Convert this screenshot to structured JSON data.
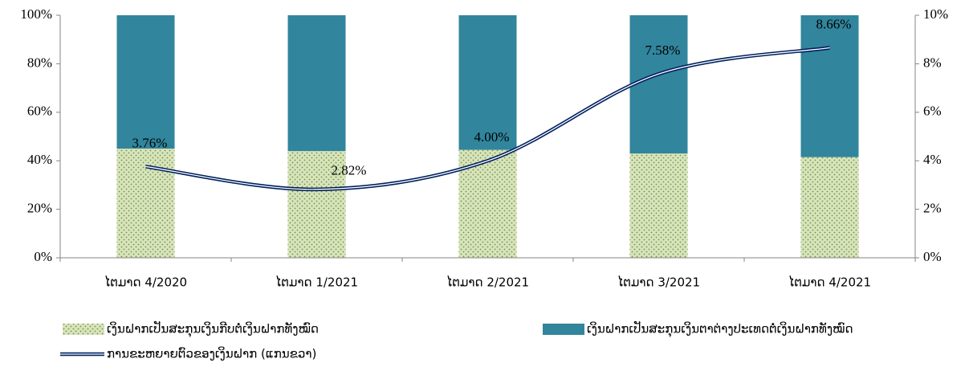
{
  "chart_data": {
    "type": "bar_line",
    "categories": [
      "ໄຕມາດ 4/2020",
      "ໄຕມາດ 1/2021",
      "ໄຕມາດ 2/2021",
      "ໄຕມາດ 3/2021",
      "ໄຕມາດ 4/2021"
    ],
    "series": [
      {
        "name": "ເງິນຝາກເປັນສະກຸນເງິນກີບຕໍ່ເງິນຝາກທັງໝົດ",
        "type": "bar",
        "color": "#d7e4bd",
        "values": [
          45,
          44,
          44.5,
          43,
          41.5
        ]
      },
      {
        "name": "ເງິນຝາກເປັນສະກຸນເງິນຕາຕ່າງປະເທດຕໍ່ເງິນຝາກທັງໝົດ",
        "type": "bar",
        "color": "#31859c",
        "values": [
          55,
          56,
          55.5,
          57,
          58.5
        ]
      },
      {
        "name": "ການຂະຫຍາຍຕົວຂອງເງິນຝາກ (ແກນຂວາ)",
        "type": "line",
        "axis": "y2",
        "color": "#002060",
        "values": [
          3.76,
          2.82,
          4.0,
          7.58,
          8.66
        ],
        "value_labels": [
          "3.76%",
          "2.82%",
          "4.00%",
          "7.58%",
          "8.66%"
        ]
      }
    ],
    "stacked": true,
    "ylim": [
      0,
      100
    ],
    "yticks": [
      {
        "value": 0,
        "label": "0%"
      },
      {
        "value": 20,
        "label": "20%"
      },
      {
        "value": 40,
        "label": "40%"
      },
      {
        "value": 60,
        "label": "60%"
      },
      {
        "value": 80,
        "label": "80%"
      },
      {
        "value": 100,
        "label": "100%"
      }
    ],
    "y2lim": [
      0,
      10
    ],
    "y2ticks": [
      {
        "value": 0,
        "label": "0%"
      },
      {
        "value": 2,
        "label": "2%"
      },
      {
        "value": 4,
        "label": "4%"
      },
      {
        "value": 6,
        "label": "6%"
      },
      {
        "value": 8,
        "label": "8%"
      },
      {
        "value": 10,
        "label": "10%"
      }
    ]
  }
}
